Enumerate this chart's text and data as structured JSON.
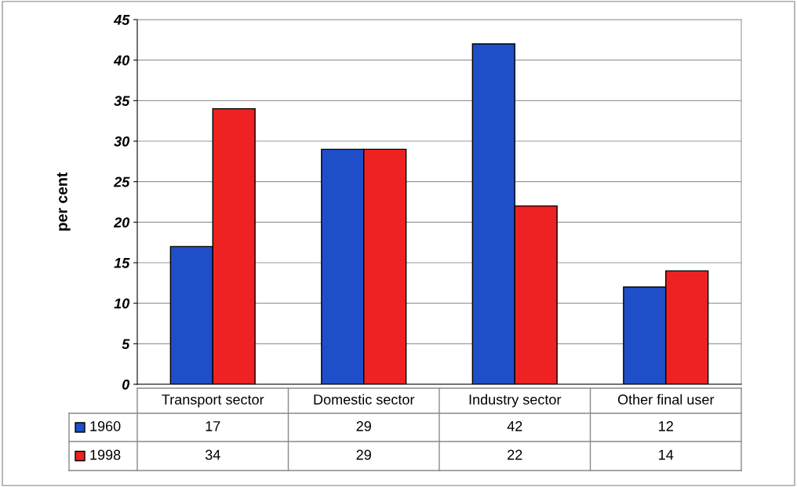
{
  "chart_data": {
    "type": "bar",
    "ylabel": "per cent",
    "categories": [
      "Transport sector",
      "Domestic sector",
      "Industry sector",
      "Other final user"
    ],
    "series": [
      {
        "name": "1960",
        "color": "#1f4fc8",
        "values": [
          17,
          29,
          42,
          12
        ]
      },
      {
        "name": "1998",
        "color": "#ee2222",
        "values": [
          34,
          29,
          22,
          14
        ]
      }
    ],
    "ylim": [
      0,
      45
    ],
    "yticks": [
      0,
      5,
      10,
      15,
      20,
      25,
      30,
      35,
      40,
      45
    ],
    "grid": "y",
    "data_labels": true,
    "legend": "bottom"
  }
}
